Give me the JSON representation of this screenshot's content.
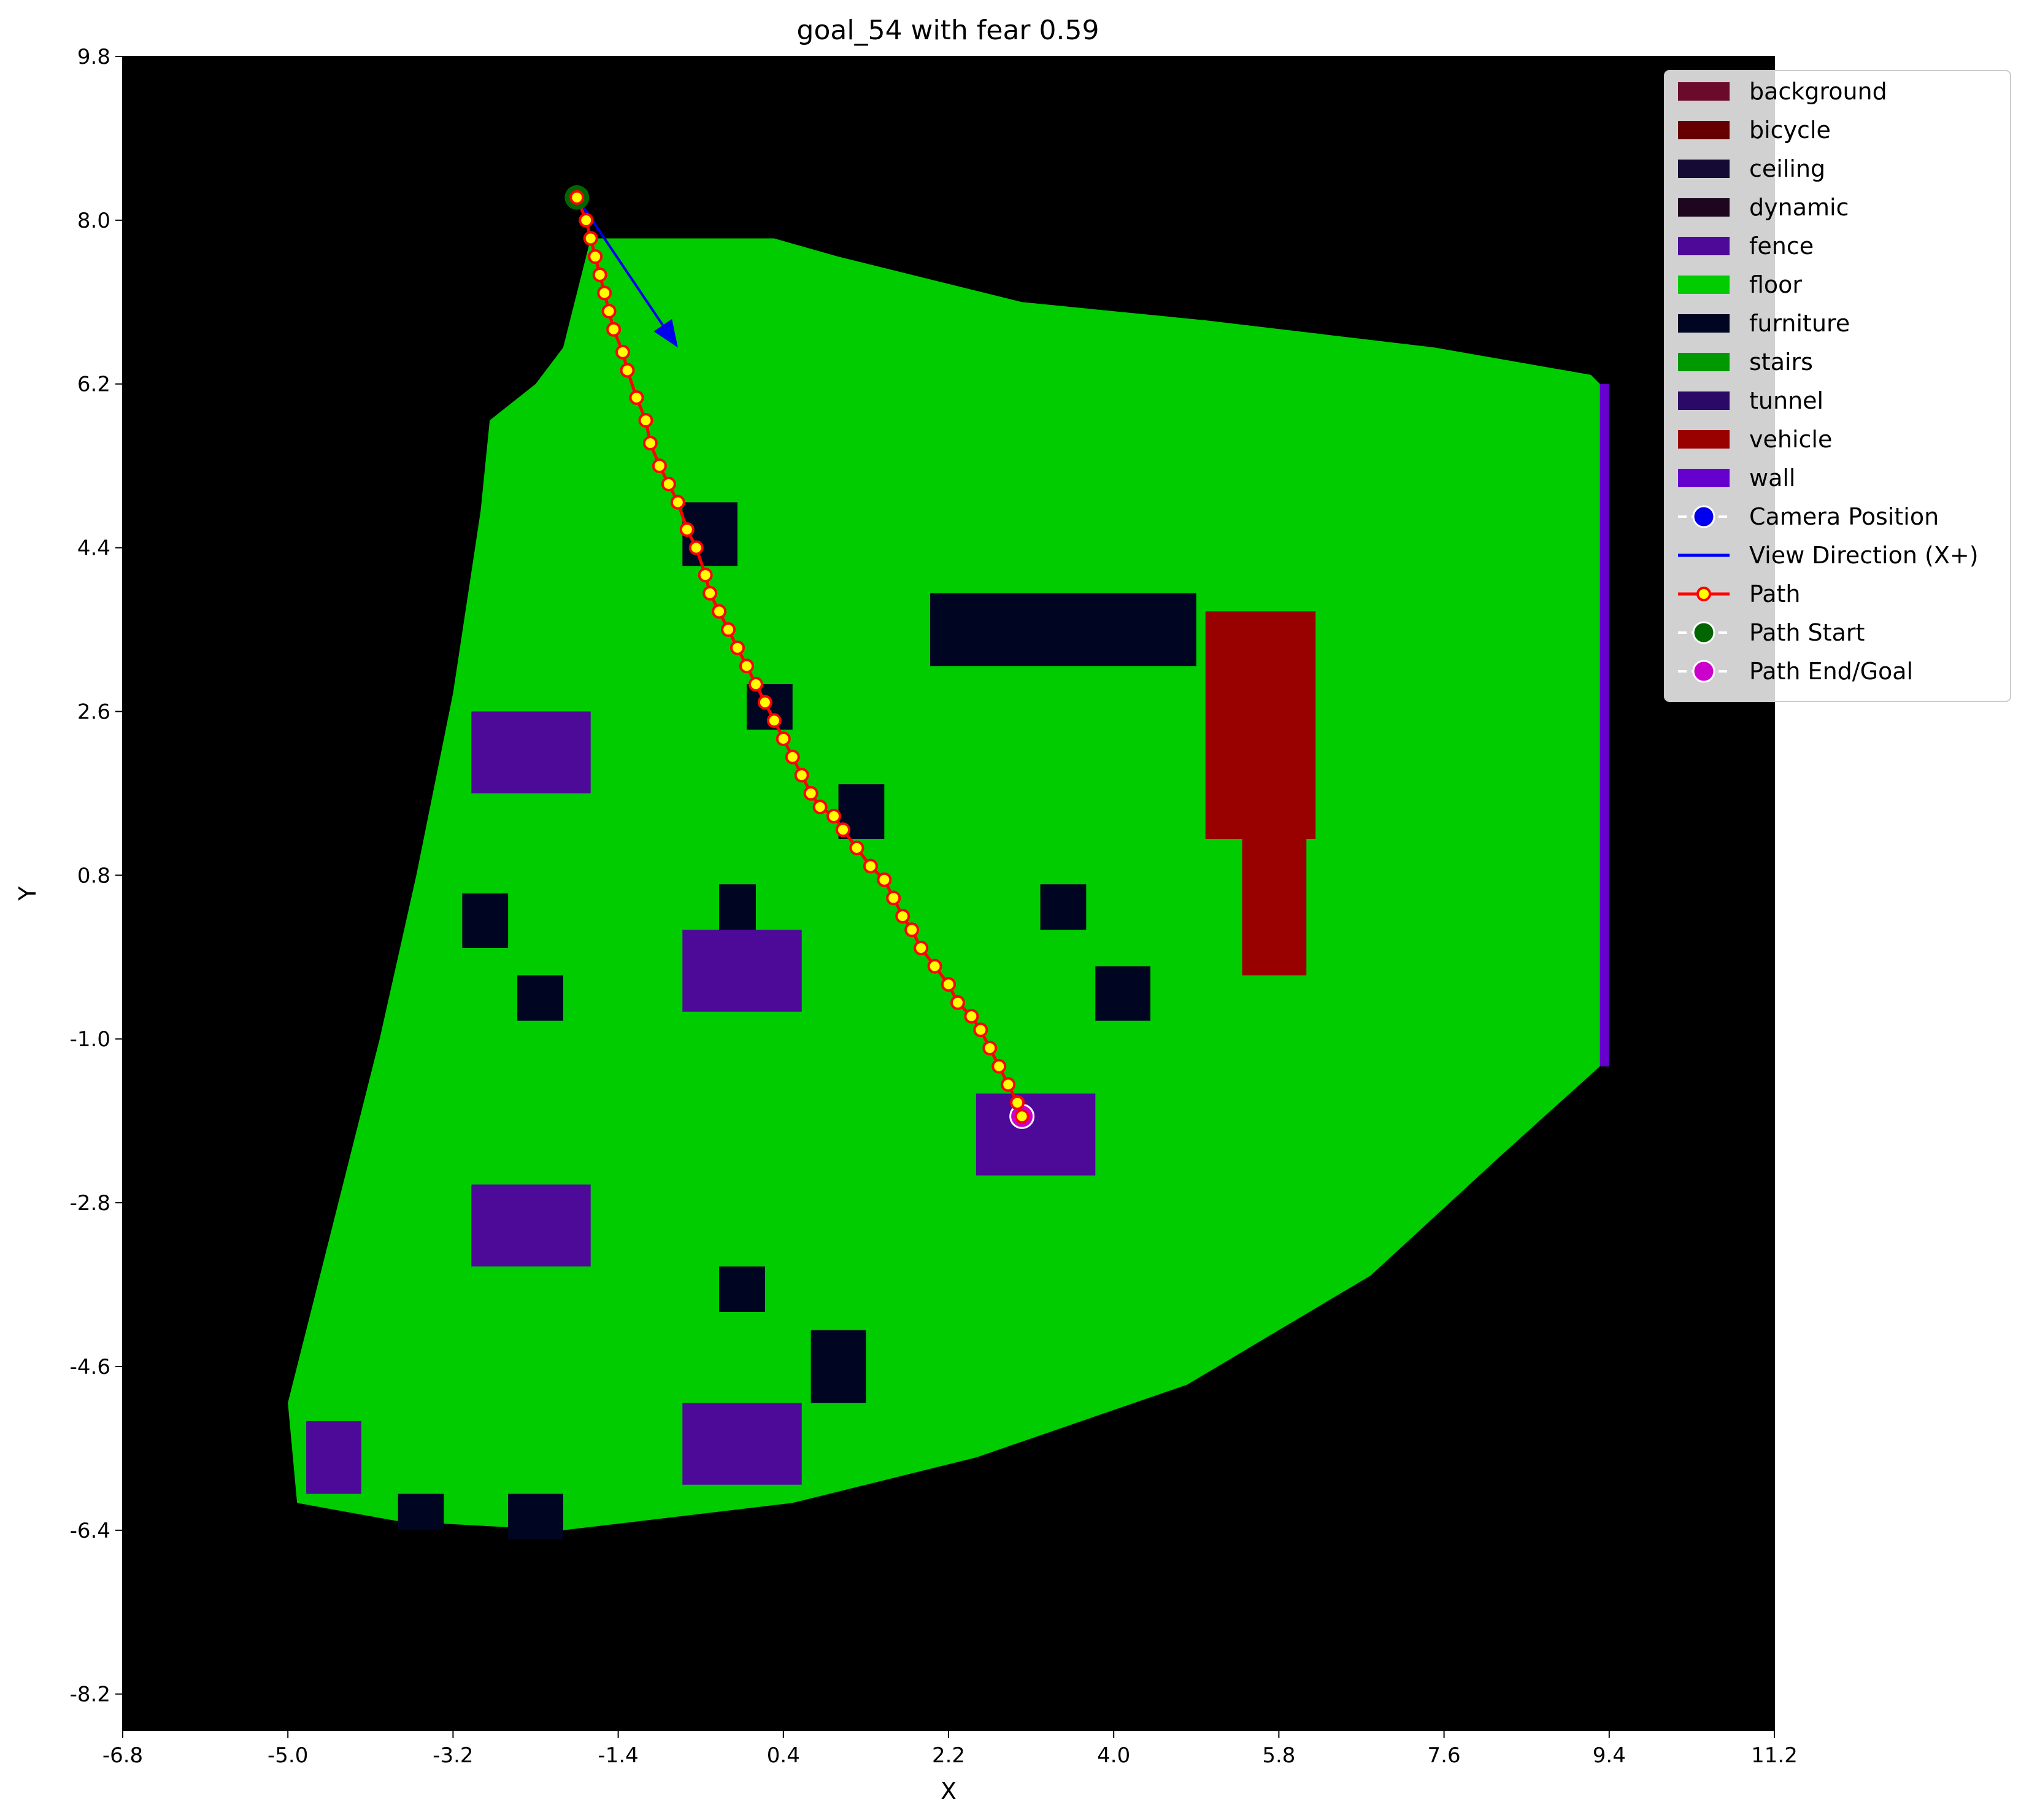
{
  "chart_data": {
    "type": "scatter",
    "title": "goal_54 with fear 0.59",
    "xlabel": "X",
    "ylabel": "Y",
    "xlim": [
      -6.8,
      11.2
    ],
    "ylim": [
      -8.6,
      9.8
    ],
    "x_ticks": [
      "-6.8",
      "-5.0",
      "-3.2",
      "-1.4",
      "0.4",
      "2.2",
      "4.0",
      "5.8",
      "7.6",
      "9.4",
      "11.2"
    ],
    "y_ticks": [
      "9.8",
      "8.0",
      "6.2",
      "4.4",
      "2.6",
      "0.8",
      "-1.0",
      "-2.8",
      "-4.6",
      "-6.4",
      "-8.2"
    ],
    "grid": false,
    "legend_position": "top-right",
    "background_color": "#000000",
    "colors": {
      "background": "#6b0a2a",
      "bicycle": "#660000",
      "ceiling": "#140a33",
      "dynamic": "#1e061e",
      "fence": "#4d0a99",
      "floor": "#00cc00",
      "furniture": "#000522",
      "stairs": "#009900",
      "tunnel": "#2a0a66",
      "vehicle": "#990000",
      "wall": "#6600cc"
    },
    "floor_region": [
      [
        -1.7,
        7.8
      ],
      [
        0.3,
        7.8
      ],
      [
        1.0,
        7.6
      ],
      [
        3.0,
        7.1
      ],
      [
        5.0,
        6.9
      ],
      [
        7.5,
        6.6
      ],
      [
        9.2,
        6.3
      ],
      [
        9.3,
        6.2
      ],
      [
        9.3,
        -1.3
      ],
      [
        8.2,
        -2.3
      ],
      [
        6.8,
        -3.6
      ],
      [
        4.8,
        -4.8
      ],
      [
        2.5,
        -5.6
      ],
      [
        0.5,
        -6.1
      ],
      [
        -2.0,
        -6.4
      ],
      [
        -3.8,
        -6.3
      ],
      [
        -4.9,
        -6.1
      ],
      [
        -5.0,
        -5.0
      ],
      [
        -4.5,
        -3.0
      ],
      [
        -4.0,
        -1.0
      ],
      [
        -3.6,
        0.8
      ],
      [
        -3.2,
        2.8
      ],
      [
        -2.9,
        4.8
      ],
      [
        -2.8,
        5.8
      ],
      [
        -2.3,
        6.2
      ],
      [
        -2.0,
        6.6
      ]
    ],
    "regions": [
      {
        "class": "fence",
        "rect": [
          -3.0,
          1.7,
          -1.7,
          2.6
        ]
      },
      {
        "class": "fence",
        "rect": [
          -0.7,
          -0.7,
          0.6,
          0.2
        ]
      },
      {
        "class": "fence",
        "rect": [
          2.5,
          -2.5,
          3.8,
          -1.6
        ]
      },
      {
        "class": "fence",
        "rect": [
          -3.0,
          -3.5,
          -1.7,
          -2.6
        ]
      },
      {
        "class": "fence",
        "rect": [
          -0.7,
          -5.9,
          0.6,
          -5.0
        ]
      },
      {
        "class": "fence",
        "rect": [
          -4.8,
          -6.0,
          -4.2,
          -5.2
        ]
      },
      {
        "class": "furniture",
        "rect": [
          -0.7,
          4.2,
          -0.1,
          4.9
        ]
      },
      {
        "class": "furniture",
        "rect": [
          0.0,
          2.4,
          0.5,
          2.9
        ]
      },
      {
        "class": "furniture",
        "rect": [
          1.0,
          1.2,
          1.5,
          1.8
        ]
      },
      {
        "class": "furniture",
        "rect": [
          -3.1,
          0.0,
          -2.6,
          0.6
        ]
      },
      {
        "class": "furniture",
        "rect": [
          -0.3,
          0.2,
          0.1,
          0.7
        ]
      },
      {
        "class": "furniture",
        "rect": [
          -2.5,
          -0.8,
          -2.0,
          -0.3
        ]
      },
      {
        "class": "furniture",
        "rect": [
          3.2,
          0.2,
          3.7,
          0.7
        ]
      },
      {
        "class": "furniture",
        "rect": [
          3.8,
          -0.8,
          4.4,
          -0.2
        ]
      },
      {
        "class": "furniture",
        "rect": [
          -0.3,
          -4.0,
          0.2,
          -3.5
        ]
      },
      {
        "class": "furniture",
        "rect": [
          0.7,
          -5.0,
          1.3,
          -4.2
        ]
      },
      {
        "class": "furniture",
        "rect": [
          2.0,
          3.1,
          4.9,
          3.9
        ]
      },
      {
        "class": "furniture",
        "rect": [
          -3.8,
          -6.4,
          -3.3,
          -6.0
        ]
      },
      {
        "class": "furniture",
        "rect": [
          -2.6,
          -6.5,
          -2.0,
          -6.0
        ]
      },
      {
        "class": "vehicle",
        "rect": [
          5.0,
          1.2,
          6.2,
          3.7
        ]
      },
      {
        "class": "vehicle",
        "rect": [
          5.4,
          -0.3,
          6.1,
          1.2
        ]
      },
      {
        "class": "wall",
        "rect": [
          9.3,
          -1.3,
          9.4,
          6.2
        ]
      }
    ],
    "view_direction": {
      "from": [
        -1.85,
        8.25
      ],
      "to": [
        -0.75,
        6.6
      ]
    },
    "series": [
      {
        "name": "Path",
        "x": [
          -1.85,
          -1.75,
          -1.7,
          -1.65,
          -1.6,
          -1.55,
          -1.5,
          -1.45,
          -1.35,
          -1.3,
          -1.2,
          -1.1,
          -1.05,
          -0.95,
          -0.85,
          -0.75,
          -0.65,
          -0.55,
          -0.45,
          -0.4,
          -0.3,
          -0.2,
          -0.1,
          0.0,
          0.1,
          0.2,
          0.3,
          0.4,
          0.5,
          0.6,
          0.7,
          0.8,
          0.95,
          1.05,
          1.2,
          1.35,
          1.5,
          1.6,
          1.7,
          1.8,
          1.9,
          2.05,
          2.2,
          2.3,
          2.45,
          2.55,
          2.65,
          2.75,
          2.85,
          2.95,
          3.0
        ],
        "y": [
          8.25,
          8.0,
          7.8,
          7.6,
          7.4,
          7.2,
          7.0,
          6.8,
          6.55,
          6.35,
          6.05,
          5.8,
          5.55,
          5.3,
          5.1,
          4.9,
          4.6,
          4.4,
          4.1,
          3.9,
          3.7,
          3.5,
          3.3,
          3.1,
          2.9,
          2.7,
          2.5,
          2.3,
          2.1,
          1.9,
          1.7,
          1.55,
          1.45,
          1.3,
          1.1,
          0.9,
          0.75,
          0.55,
          0.35,
          0.2,
          0.0,
          -0.2,
          -0.4,
          -0.6,
          -0.75,
          -0.9,
          -1.1,
          -1.3,
          -1.5,
          -1.7,
          -1.85
        ]
      }
    ],
    "markers": {
      "path_start": [
        -1.85,
        8.25
      ],
      "path_end": [
        3.0,
        -1.85
      ]
    },
    "legend": [
      {
        "label": "background",
        "kind": "patch",
        "color": "#6b0a2a"
      },
      {
        "label": "bicycle",
        "kind": "patch",
        "color": "#660000"
      },
      {
        "label": "ceiling",
        "kind": "patch",
        "color": "#140a33"
      },
      {
        "label": "dynamic",
        "kind": "patch",
        "color": "#1e061e"
      },
      {
        "label": "fence",
        "kind": "patch",
        "color": "#4d0a99"
      },
      {
        "label": "floor",
        "kind": "patch",
        "color": "#00cc00"
      },
      {
        "label": "furniture",
        "kind": "patch",
        "color": "#000522"
      },
      {
        "label": "stairs",
        "kind": "patch",
        "color": "#009900"
      },
      {
        "label": "tunnel",
        "kind": "patch",
        "color": "#2a0a66"
      },
      {
        "label": "vehicle",
        "kind": "patch",
        "color": "#990000"
      },
      {
        "label": "wall",
        "kind": "patch",
        "color": "#6600cc"
      },
      {
        "label": "Camera Position",
        "kind": "marker",
        "color": "#0000ee",
        "edge": "#ffffff",
        "line": "#ffffff"
      },
      {
        "label": "View Direction (X+)",
        "kind": "line",
        "color": "#0000ee"
      },
      {
        "label": "Path",
        "kind": "path",
        "color": "#ffff00",
        "edge": "#ff0000",
        "line": "#ff0000"
      },
      {
        "label": "Path Start",
        "kind": "marker",
        "color": "#006600",
        "edge": "#ffffff",
        "line": "#ffffff"
      },
      {
        "label": "Path End/Goal",
        "kind": "marker",
        "color": "#cc00cc",
        "edge": "#ffffff",
        "line": "#ffffff"
      }
    ]
  }
}
